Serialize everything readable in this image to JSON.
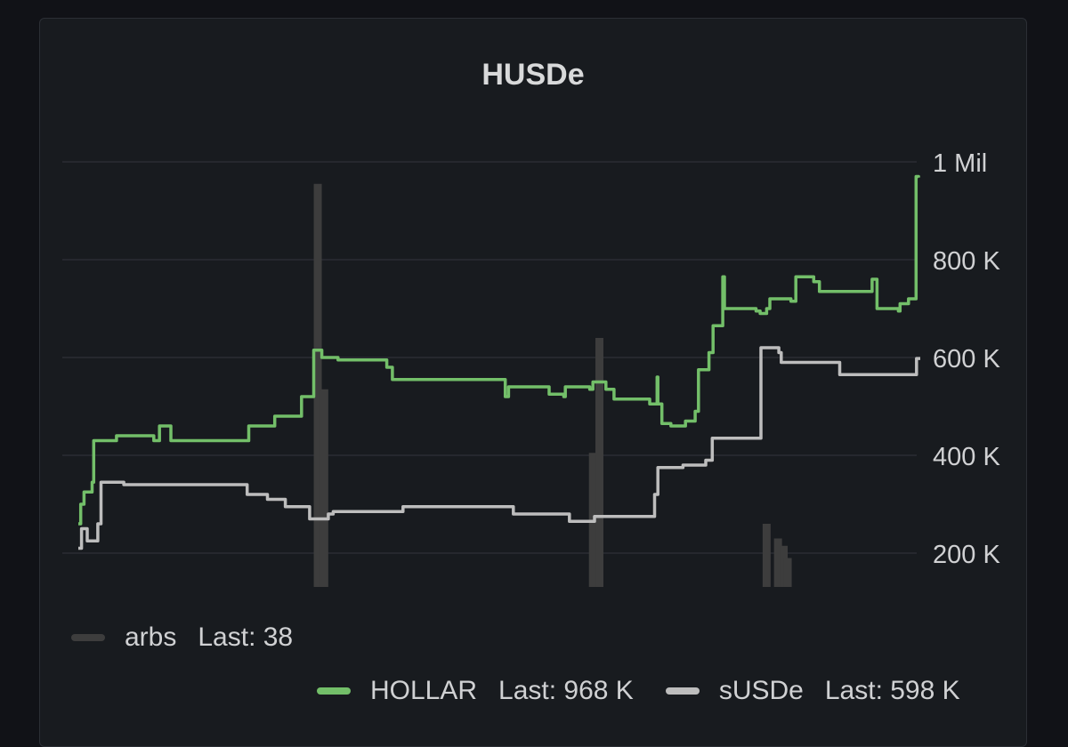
{
  "panel": {
    "title": "HUSDe"
  },
  "chart_data": {
    "type": "line",
    "title": "HUSDe",
    "y_ticks": [
      {
        "value": 1000000,
        "label": "1 Mil"
      },
      {
        "value": 800000,
        "label": "800 K"
      },
      {
        "value": 600000,
        "label": "600 K"
      },
      {
        "value": 400000,
        "label": "400 K"
      },
      {
        "value": 200000,
        "label": "200 K"
      }
    ],
    "ylim": [
      130000,
      1000000
    ],
    "x_range": [
      0,
      100
    ],
    "grid": true,
    "series": [
      {
        "name": "HOLLAR",
        "kind": "step-line",
        "color": "#73bf69",
        "last_label": "Last: 968 K",
        "points": [
          [
            0,
            260000
          ],
          [
            0.3,
            300000
          ],
          [
            0.7,
            325000
          ],
          [
            1.7,
            345000
          ],
          [
            1.9,
            430000
          ],
          [
            4,
            430000
          ],
          [
            4.7,
            440000
          ],
          [
            9.3,
            430000
          ],
          [
            10,
            460000
          ],
          [
            11.4,
            430000
          ],
          [
            20.6,
            430000
          ],
          [
            21,
            460000
          ],
          [
            24.2,
            480000
          ],
          [
            27.5,
            520000
          ],
          [
            28.7,
            520000
          ],
          [
            29,
            615000
          ],
          [
            30,
            600000
          ],
          [
            32,
            595000
          ],
          [
            38,
            580000
          ],
          [
            38.7,
            555000
          ],
          [
            52.6,
            520000
          ],
          [
            53,
            540000
          ],
          [
            58,
            525000
          ],
          [
            59.8,
            520000
          ],
          [
            60,
            540000
          ],
          [
            63,
            535000
          ],
          [
            63.4,
            550000
          ],
          [
            65,
            535000
          ],
          [
            66,
            515000
          ],
          [
            70.4,
            505000
          ],
          [
            71.3,
            560000
          ],
          [
            71.4,
            505000
          ],
          [
            71.9,
            465000
          ],
          [
            73,
            460000
          ],
          [
            74.8,
            470000
          ],
          [
            76,
            490000
          ],
          [
            76.4,
            575000
          ],
          [
            77.7,
            610000
          ],
          [
            78.2,
            665000
          ],
          [
            79.4,
            765000
          ],
          [
            79.6,
            700000
          ],
          [
            83.5,
            695000
          ],
          [
            84,
            690000
          ],
          [
            84.8,
            700000
          ],
          [
            85.2,
            720000
          ],
          [
            87.8,
            715000
          ],
          [
            88.4,
            765000
          ],
          [
            90.6,
            755000
          ],
          [
            91.3,
            735000
          ],
          [
            97.4,
            735000
          ],
          [
            97.8,
            760000
          ],
          [
            98.4,
            700000
          ],
          [
            100,
            700000
          ]
        ],
        "tail_points": [
          [
            0,
            700000
          ],
          [
            2,
            695000
          ],
          [
            2.4,
            710000
          ],
          [
            4.4,
            720000
          ],
          [
            5.8,
            720000
          ],
          [
            6.2,
            970000
          ],
          [
            6.8,
            968000
          ]
        ]
      },
      {
        "name": "sUSDe",
        "kind": "step-line",
        "color": "#bdbdbd",
        "last_label": "Last: 598 K",
        "points": [
          [
            0,
            210000
          ],
          [
            0.4,
            250000
          ],
          [
            1.1,
            225000
          ],
          [
            2.4,
            260000
          ],
          [
            2.8,
            345000
          ],
          [
            5,
            345000
          ],
          [
            5.6,
            340000
          ],
          [
            20.4,
            340000
          ],
          [
            20.8,
            320000
          ],
          [
            23.3,
            310000
          ],
          [
            25.5,
            295000
          ],
          [
            28.5,
            270000
          ],
          [
            30.8,
            280000
          ],
          [
            31.4,
            285000
          ],
          [
            39.6,
            285000
          ],
          [
            40,
            295000
          ],
          [
            53.2,
            295000
          ],
          [
            53.6,
            280000
          ],
          [
            59.8,
            280000
          ],
          [
            60.5,
            265000
          ],
          [
            63.1,
            265000
          ],
          [
            63.6,
            275000
          ],
          [
            70.6,
            275000
          ],
          [
            71,
            320000
          ],
          [
            71.4,
            375000
          ],
          [
            73.6,
            375000
          ],
          [
            74.5,
            380000
          ],
          [
            77.3,
            390000
          ],
          [
            78.1,
            435000
          ],
          [
            83.7,
            435000
          ],
          [
            84.1,
            620000
          ],
          [
            86.3,
            610000
          ],
          [
            86.6,
            590000
          ],
          [
            93.3,
            590000
          ],
          [
            93.8,
            565000
          ],
          [
            100,
            565000
          ]
        ],
        "tail_points": [
          [
            0,
            565000
          ],
          [
            6,
            565000
          ],
          [
            6.3,
            598000
          ],
          [
            7.2,
            598000
          ]
        ]
      },
      {
        "name": "arbs",
        "kind": "bars",
        "color": "#3d3d3d",
        "last_label": "Last: 38",
        "bars": [
          [
            29.5,
            955000
          ],
          [
            30.3,
            535000
          ],
          [
            63.4,
            405000
          ],
          [
            64.2,
            640000
          ],
          [
            84.8,
            260000
          ],
          [
            86.2,
            230000
          ],
          [
            86.9,
            215000
          ],
          [
            87.4,
            190000
          ]
        ]
      }
    ],
    "legend": {
      "placement": "bottom",
      "row1": [
        {
          "name": "arbs",
          "stat": "Last: 38",
          "color": "#3d3d3d"
        }
      ],
      "row2": [
        {
          "name": "HOLLAR",
          "stat": "Last: 968 K",
          "color": "#73bf69"
        },
        {
          "name": "sUSDe",
          "stat": "Last: 598 K",
          "color": "#bdbdbd"
        }
      ]
    }
  }
}
